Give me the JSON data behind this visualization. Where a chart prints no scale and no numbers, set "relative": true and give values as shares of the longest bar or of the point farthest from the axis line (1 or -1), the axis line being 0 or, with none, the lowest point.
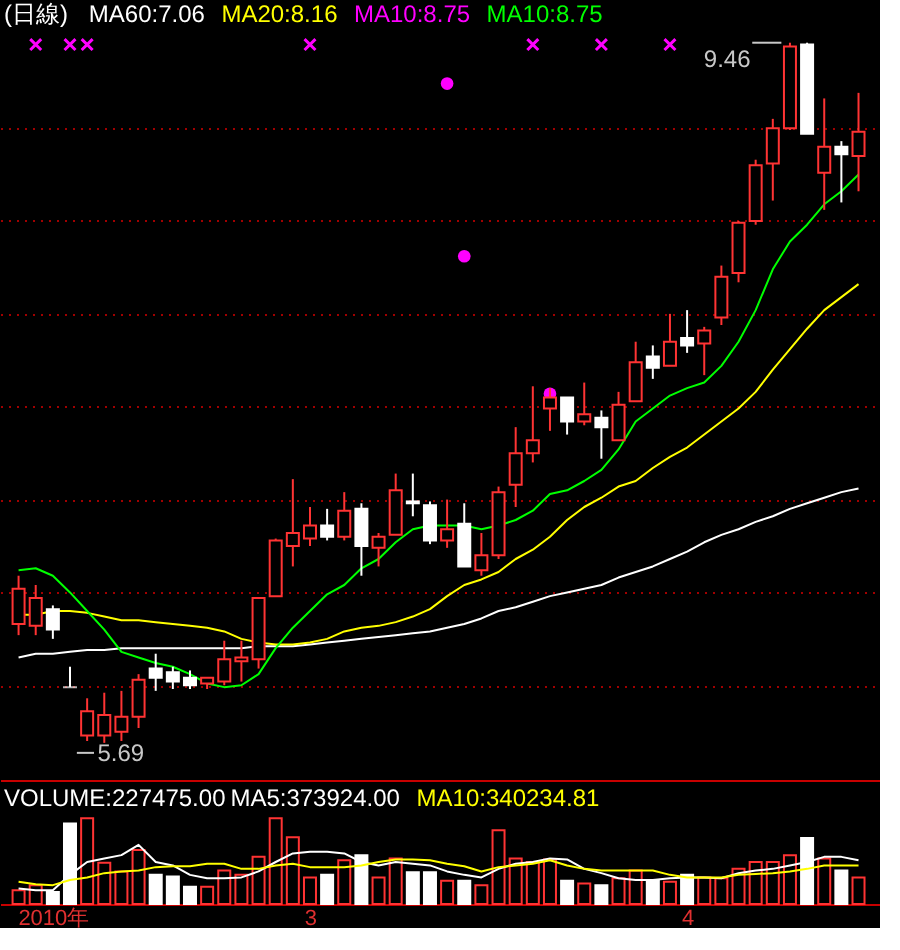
{
  "chart_data": [
    {
      "type": "candlestick",
      "title": "(日線)",
      "legend": "top left",
      "tick_labels": false,
      "grid": "y",
      "categories": [
        null,
        null,
        null,
        null,
        null,
        null,
        null,
        null,
        null,
        null,
        null,
        null,
        null,
        null,
        null,
        null,
        null,
        null,
        null,
        null,
        null,
        null,
        null,
        null,
        null,
        null,
        null,
        null,
        null,
        null,
        null,
        null,
        null,
        null,
        null,
        null,
        null,
        null,
        null,
        null,
        null,
        null,
        null,
        null,
        null,
        null,
        null,
        null,
        null,
        null
      ],
      "ylim": [
        5.49,
        9.69
      ],
      "yticks": [
        {
          "value": 6,
          "label": null
        },
        {
          "value": 6.5,
          "label": null
        },
        {
          "value": 7,
          "label": null
        },
        {
          "value": 7.5,
          "label": null
        },
        {
          "value": 8,
          "label": null
        },
        {
          "value": 8.5,
          "label": null
        },
        {
          "value": 9,
          "label": null
        }
      ],
      "ohlc": [
        [
          6.33,
          6.59,
          6.27,
          6.52
        ],
        [
          6.32,
          6.54,
          6.27,
          6.47
        ],
        [
          6.41,
          6.43,
          6.25,
          6.3
        ],
        [
          5.99,
          6.1,
          5.99,
          5.99
        ],
        [
          5.73,
          5.93,
          5.7,
          5.86
        ],
        [
          5.73,
          5.96,
          5.69,
          5.84
        ],
        [
          5.75,
          5.97,
          5.7,
          5.83
        ],
        [
          5.83,
          6.06,
          5.77,
          6.03
        ],
        [
          6.09,
          6.17,
          5.97,
          6.04
        ],
        [
          6.07,
          6.1,
          5.98,
          6.02
        ],
        [
          6.04,
          6.08,
          5.98,
          6.0
        ],
        [
          6.01,
          6.04,
          5.98,
          6.04
        ],
        [
          6.02,
          6.24,
          6.0,
          6.14
        ],
        [
          6.13,
          6.24,
          6.02,
          6.15
        ],
        [
          6.14,
          6.47,
          6.09,
          6.47
        ],
        [
          6.48,
          6.79,
          6.48,
          6.78
        ],
        [
          6.75,
          7.11,
          6.64,
          6.82
        ],
        [
          6.79,
          6.96,
          6.75,
          6.86
        ],
        [
          6.86,
          6.95,
          6.78,
          6.8
        ],
        [
          6.8,
          7.04,
          6.78,
          6.94
        ],
        [
          6.95,
          6.98,
          6.59,
          6.75
        ],
        [
          6.74,
          6.82,
          6.64,
          6.8
        ],
        [
          6.81,
          7.14,
          6.81,
          7.05
        ],
        [
          6.99,
          7.14,
          6.91,
          6.98
        ],
        [
          6.97,
          6.99,
          6.76,
          6.78
        ],
        [
          6.78,
          7.0,
          6.74,
          6.84
        ],
        [
          6.87,
          6.98,
          6.64,
          6.64
        ],
        [
          6.62,
          6.82,
          6.59,
          6.7
        ],
        [
          6.7,
          7.07,
          6.68,
          7.04
        ],
        [
          7.08,
          7.39,
          6.96,
          7.25
        ],
        [
          7.25,
          7.61,
          7.2,
          7.32
        ],
        [
          7.49,
          7.6,
          7.37,
          7.55
        ],
        [
          7.55,
          7.55,
          7.35,
          7.42
        ],
        [
          7.42,
          7.63,
          7.4,
          7.46
        ],
        [
          7.44,
          7.48,
          7.22,
          7.39
        ],
        [
          7.32,
          7.58,
          7.32,
          7.51
        ],
        [
          7.53,
          7.85,
          7.53,
          7.74
        ],
        [
          7.77,
          7.83,
          7.65,
          7.71
        ],
        [
          7.72,
          8.0,
          7.72,
          7.85
        ],
        [
          7.87,
          8.02,
          7.79,
          7.83
        ],
        [
          7.84,
          7.93,
          7.67,
          7.91
        ],
        [
          7.98,
          8.26,
          7.94,
          8.2
        ],
        [
          8.22,
          8.5,
          8.17,
          8.49
        ],
        [
          8.5,
          8.83,
          8.48,
          8.8
        ],
        [
          8.81,
          9.05,
          8.61,
          9.0
        ],
        [
          9.0,
          9.46,
          8.99,
          9.44
        ],
        [
          9.45,
          9.46,
          8.97,
          8.97
        ],
        [
          8.76,
          9.16,
          8.56,
          8.9
        ],
        [
          8.9,
          8.93,
          8.6,
          8.86
        ],
        [
          8.85,
          9.19,
          8.66,
          8.98
        ]
      ],
      "colors": [
        "#ff3333",
        "#ff3333",
        "#ffffff",
        "#ffffff",
        "#ff3333",
        "#ff3333",
        "#ff3333",
        "#ff3333",
        "#ffffff",
        "#ffffff",
        "#ffffff",
        "#ff3333",
        "#ff3333",
        "#ff3333",
        "#ff3333",
        "#ff3333",
        "#ff3333",
        "#ff3333",
        "#ffffff",
        "#ff3333",
        "#ffffff",
        "#ff3333",
        "#ff3333",
        "#ffffff",
        "#ffffff",
        "#ff3333",
        "#ffffff",
        "#ff3333",
        "#ff3333",
        "#ff3333",
        "#ff3333",
        "#ff3333",
        "#ffffff",
        "#ff3333",
        "#ffffff",
        "#ff3333",
        "#ff3333",
        "#ffffff",
        "#ff3333",
        "#ffffff",
        "#ff3333",
        "#ff3333",
        "#ff3333",
        "#ff3333",
        "#ff3333",
        "#ff3333",
        "#ffffff",
        "#ff3333",
        "#ffffff",
        "#ff3333"
      ],
      "series": [
        {
          "name": "MA60:7.06",
          "type": "line",
          "color": "#ffffff",
          "values": [
            6.15,
            6.17,
            6.17,
            6.18,
            6.19,
            6.19,
            6.2,
            6.2,
            6.2,
            6.2,
            6.2,
            6.2,
            6.2,
            6.2,
            6.21,
            6.21,
            6.21,
            6.22,
            6.23,
            6.24,
            6.25,
            6.26,
            6.27,
            6.28,
            6.29,
            6.31,
            6.33,
            6.36,
            6.4,
            6.42,
            6.45,
            6.48,
            6.5,
            6.52,
            6.54,
            6.58,
            6.61,
            6.64,
            6.68,
            6.72,
            6.77,
            6.81,
            6.84,
            6.88,
            6.91,
            6.95,
            6.98,
            7.01,
            7.04,
            7.06
          ]
        },
        {
          "name": "MA20:8.16",
          "type": "line",
          "color": "#ffff00",
          "values": [
            6.38,
            6.38,
            6.4,
            6.4,
            6.39,
            6.37,
            6.35,
            6.35,
            6.34,
            6.33,
            6.32,
            6.31,
            6.29,
            6.25,
            6.23,
            6.22,
            6.22,
            6.23,
            6.25,
            6.29,
            6.31,
            6.32,
            6.34,
            6.37,
            6.41,
            6.48,
            6.54,
            6.57,
            6.61,
            6.68,
            6.73,
            6.8,
            6.89,
            6.96,
            7.01,
            7.07,
            7.1,
            7.17,
            7.23,
            7.28,
            7.35,
            7.42,
            7.49,
            7.58,
            7.7,
            7.81,
            7.92,
            8.02,
            8.09,
            8.16
          ]
        },
        {
          "name": "MA10:8.75",
          "type": "scatter",
          "marker": "circle",
          "color": "#ff00ff",
          "values": [
            null,
            null,
            null,
            null,
            null,
            null,
            null,
            null,
            null,
            null,
            null,
            null,
            null,
            null,
            null,
            null,
            null,
            null,
            null,
            null,
            null,
            null,
            null,
            null,
            null,
            9.24,
            8.31,
            null,
            null,
            null,
            null,
            7.57,
            null,
            null,
            null,
            null,
            null,
            null,
            null,
            null,
            null,
            null,
            null,
            null,
            null,
            null,
            null,
            null,
            null,
            null
          ]
        },
        {
          "name": "MA10:8.75",
          "type": "line",
          "color": "#00ff00",
          "values": [
            6.62,
            6.63,
            6.59,
            6.5,
            6.4,
            6.3,
            6.18,
            6.15,
            6.12,
            6.1,
            6.06,
            6.01,
            5.99,
            6.0,
            6.06,
            6.2,
            6.31,
            6.4,
            6.49,
            6.54,
            6.63,
            6.68,
            6.77,
            6.84,
            6.86,
            6.86,
            6.86,
            6.84,
            6.86,
            6.89,
            6.94,
            7.03,
            7.05,
            7.1,
            7.16,
            7.27,
            7.42,
            7.49,
            7.56,
            7.6,
            7.63,
            7.72,
            7.85,
            8.02,
            8.24,
            8.39,
            8.48,
            8.59,
            8.66,
            8.75
          ]
        },
        {
          "type": "scatter",
          "marker": "cross",
          "color": "#ff00ff",
          "values": [
            null,
            9.45,
            null,
            9.45,
            9.45,
            null,
            null,
            null,
            null,
            null,
            null,
            null,
            null,
            null,
            null,
            null,
            null,
            9.45,
            null,
            null,
            null,
            null,
            null,
            null,
            null,
            null,
            null,
            null,
            null,
            null,
            9.45,
            null,
            null,
            null,
            9.45,
            null,
            null,
            null,
            9.45,
            null,
            null,
            null,
            null,
            null,
            null,
            null,
            null,
            null,
            null,
            null
          ]
        }
      ],
      "annotations": [
        "9.46",
        "5.69"
      ]
    },
    {
      "type": "bar",
      "title": "VOLUME:227475.00",
      "relative": true,
      "legend": "top left",
      "tick_labels": "x",
      "categories": [
        null,
        null,
        "2010年",
        null,
        null,
        null,
        null,
        null,
        null,
        null,
        null,
        null,
        null,
        null,
        null,
        null,
        null,
        "3",
        null,
        null,
        null,
        null,
        null,
        null,
        null,
        null,
        null,
        null,
        null,
        null,
        null,
        null,
        null,
        null,
        null,
        null,
        null,
        null,
        null,
        "4",
        null,
        null,
        null,
        null,
        null,
        null,
        null,
        null,
        null,
        null
      ],
      "series": [
        {
          "type": "bar",
          "colors": [
            "#ff3333",
            "#ff3333",
            "#ffffff",
            "#ffffff",
            "#ff3333",
            "#ff3333",
            "#ff3333",
            "#ff3333",
            "#ffffff",
            "#ffffff",
            "#ffffff",
            "#ff3333",
            "#ff3333",
            "#ff3333",
            "#ff3333",
            "#ff3333",
            "#ff3333",
            "#ff3333",
            "#ffffff",
            "#ff3333",
            "#ffffff",
            "#ff3333",
            "#ff3333",
            "#ffffff",
            "#ffffff",
            "#ff3333",
            "#ffffff",
            "#ff3333",
            "#ff3333",
            "#ff3333",
            "#ff3333",
            "#ff3333",
            "#ffffff",
            "#ff3333",
            "#ffffff",
            "#ff3333",
            "#ff3333",
            "#ffffff",
            "#ff3333",
            "#ffffff",
            "#ff3333",
            "#ff3333",
            "#ff3333",
            "#ff3333",
            "#ff3333",
            "#ff3333",
            "#ffffff",
            "#ff3333",
            "#ffffff",
            "#ff3333"
          ],
          "values": [
            0.16,
            0.22,
            0.14,
            0.94,
            1,
            0.48,
            0.38,
            0.63,
            0.34,
            0.32,
            0.2,
            0.2,
            0.39,
            0.34,
            0.55,
            1,
            0.78,
            0.31,
            0.34,
            0.51,
            0.57,
            0.31,
            0.53,
            0.37,
            0.37,
            0.27,
            0.27,
            0.22,
            0.86,
            0.53,
            0.49,
            0.52,
            0.27,
            0.24,
            0.22,
            0.3,
            0.39,
            0.27,
            0.26,
            0.34,
            0.31,
            0.3,
            0.41,
            0.49,
            0.49,
            0.57,
            0.77,
            0.53,
            0.39,
            0.31
          ]
        },
        {
          "name": "MA5:373924.00",
          "type": "line",
          "color": "#ffffff",
          "values": [
            0.18,
            0.16,
            0.16,
            0.34,
            0.49,
            0.53,
            0.57,
            0.69,
            0.49,
            0.45,
            0.34,
            0.3,
            0.3,
            0.31,
            0.38,
            0.49,
            0.59,
            0.61,
            0.61,
            0.59,
            0.49,
            0.45,
            0.49,
            0.47,
            0.45,
            0.38,
            0.34,
            0.31,
            0.41,
            0.47,
            0.49,
            0.53,
            0.52,
            0.41,
            0.36,
            0.3,
            0.28,
            0.28,
            0.3,
            0.31,
            0.31,
            0.3,
            0.36,
            0.39,
            0.41,
            0.45,
            0.49,
            0.55,
            0.55,
            0.51
          ]
        },
        {
          "name": "MA10:340234.81",
          "type": "line",
          "color": "#ffff00",
          "values": [
            0.26,
            0.23,
            0.22,
            0.28,
            0.31,
            0.36,
            0.38,
            0.39,
            0.43,
            0.44,
            0.44,
            0.47,
            0.47,
            0.41,
            0.41,
            0.45,
            0.47,
            0.43,
            0.43,
            0.43,
            0.45,
            0.49,
            0.52,
            0.52,
            0.51,
            0.47,
            0.44,
            0.38,
            0.43,
            0.45,
            0.47,
            0.51,
            0.45,
            0.41,
            0.39,
            0.39,
            0.39,
            0.39,
            0.34,
            0.31,
            0.31,
            0.31,
            0.34,
            0.35,
            0.36,
            0.38,
            0.41,
            0.45,
            0.45,
            0.45
          ]
        }
      ]
    }
  ]
}
